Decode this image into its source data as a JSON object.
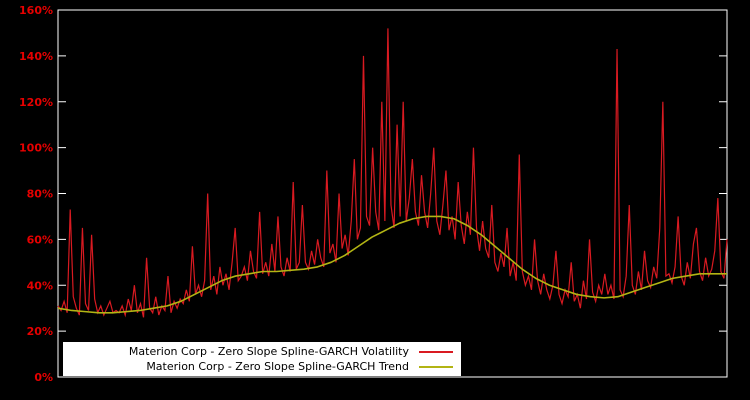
{
  "chart_data": {
    "type": "line",
    "title": "",
    "xlabel": "",
    "ylabel": "",
    "ylim": [
      0,
      160
    ],
    "ytick_step": 20,
    "ytick_suffix": "%",
    "grid": false,
    "legend_position": "bottom-left-inside",
    "background": "#000000",
    "frame_color": "#ffffff",
    "axis_label_color": "#e60000",
    "series": [
      {
        "name": "Materion Corp - Zero Slope Spline-GARCH Volatility",
        "color": "#d91a21",
        "values": [
          31,
          29,
          33,
          28,
          73,
          35,
          30,
          27,
          65,
          32,
          29,
          62,
          34,
          28,
          31,
          27,
          30,
          33,
          28,
          29,
          28,
          31,
          27,
          34,
          29,
          40,
          28,
          32,
          26,
          52,
          30,
          28,
          35,
          27,
          31,
          29,
          44,
          28,
          33,
          30,
          34,
          32,
          38,
          33,
          57,
          36,
          40,
          35,
          42,
          80,
          38,
          44,
          36,
          48,
          40,
          45,
          38,
          50,
          65,
          42,
          44,
          48,
          42,
          55,
          46,
          43,
          72,
          45,
          50,
          44,
          58,
          46,
          70,
          48,
          44,
          52,
          46,
          85,
          47,
          50,
          75,
          50,
          47,
          55,
          49,
          60,
          52,
          48,
          90,
          54,
          58,
          50,
          80,
          56,
          62,
          53,
          68,
          95,
          60,
          65,
          140,
          70,
          66,
          100,
          72,
          64,
          120,
          68,
          152,
          75,
          65,
          110,
          70,
          120,
          68,
          78,
          95,
          72,
          66,
          88,
          72,
          65,
          80,
          100,
          68,
          62,
          75,
          90,
          64,
          70,
          60,
          85,
          66,
          58,
          72,
          62,
          100,
          65,
          55,
          68,
          56,
          52,
          75,
          50,
          46,
          54,
          48,
          65,
          44,
          50,
          42,
          97,
          46,
          40,
          44,
          38,
          60,
          42,
          36,
          45,
          38,
          34,
          40,
          55,
          36,
          32,
          38,
          35,
          50,
          33,
          36,
          30,
          42,
          34,
          60,
          37,
          33,
          40,
          36,
          45,
          36,
          40,
          34,
          143,
          38,
          35,
          44,
          75,
          40,
          36,
          46,
          38,
          55,
          42,
          39,
          48,
          43,
          65,
          120,
          44,
          45,
          41,
          48,
          70,
          44,
          40,
          50,
          43,
          58,
          65,
          46,
          42,
          52,
          44,
          47,
          55,
          78,
          46,
          43,
          60
        ]
      },
      {
        "name": "Materion Corp - Zero Slope Spline-GARCH Trend",
        "color": "#b2b414",
        "values": [
          30,
          29,
          28.5,
          28,
          28,
          28.5,
          29,
          30,
          31,
          33,
          36,
          39,
          42,
          44,
          45,
          46,
          46,
          46.5,
          47,
          48,
          50,
          53,
          57,
          61,
          64,
          67,
          69,
          70,
          70,
          69,
          66,
          62,
          57,
          52,
          47,
          43,
          40,
          38,
          36,
          35,
          34.5,
          35,
          37,
          39,
          41,
          43,
          44,
          45,
          45,
          45
        ]
      }
    ]
  }
}
